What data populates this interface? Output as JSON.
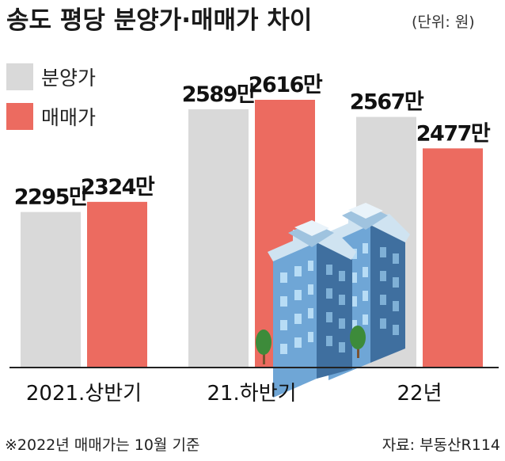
{
  "chart_data": {
    "type": "bar",
    "title": "송도 평당 분양가·매매가 차이",
    "unit_note": "(단위: 원)",
    "categories": [
      "2021.상반기",
      "21.하반기",
      "22년"
    ],
    "series": [
      {
        "name": "분양가",
        "values": [
          2295,
          2589,
          2567
        ],
        "labels": [
          "2295만",
          "2589만",
          "2567만"
        ],
        "color": "#d9d9d9"
      },
      {
        "name": "매매가",
        "values": [
          2324,
          2616,
          2477
        ],
        "labels": [
          "2324만",
          "2616만",
          "2477만"
        ],
        "color": "#ec6b60"
      }
    ],
    "ylim": [
      1850,
      2616
    ],
    "grid": false,
    "legend_position": "top-left"
  },
  "footnote": "※2022년 매매가는 10월 기준",
  "source": "자료: 부동산R114",
  "colors": {
    "building_body": "#6fa6d6",
    "building_shade": "#3f6f9f",
    "window": "#b7dcf5",
    "tree": "#3d8b3a",
    "trunk": "#7a5230"
  }
}
